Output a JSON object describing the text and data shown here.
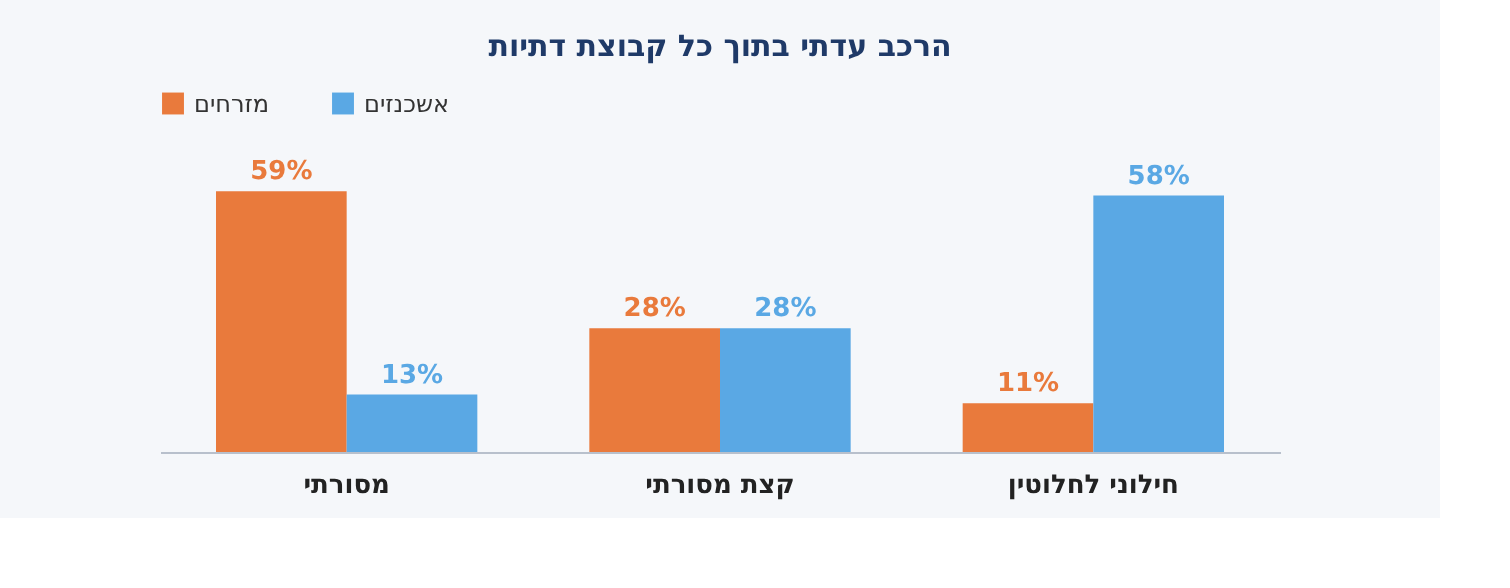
{
  "chart_data": {
    "type": "bar",
    "title": "הרכב עדתי בתוך כל קבוצת דתיות",
    "categories": [
      "מסורתי",
      "קצת מסורתי",
      "חילוני לחלוטין"
    ],
    "series": [
      {
        "name": "מזרחים",
        "color": "#e97a3c",
        "values": [
          59,
          28,
          11
        ],
        "value_labels": [
          "59%",
          "28%",
          "11%"
        ]
      },
      {
        "name": "אשכנזים",
        "color": "#5aa8e4",
        "values": [
          13,
          28,
          58
        ],
        "value_labels": [
          "13%",
          "28%",
          "58%"
        ]
      }
    ],
    "legend": "top",
    "grid": false
  }
}
